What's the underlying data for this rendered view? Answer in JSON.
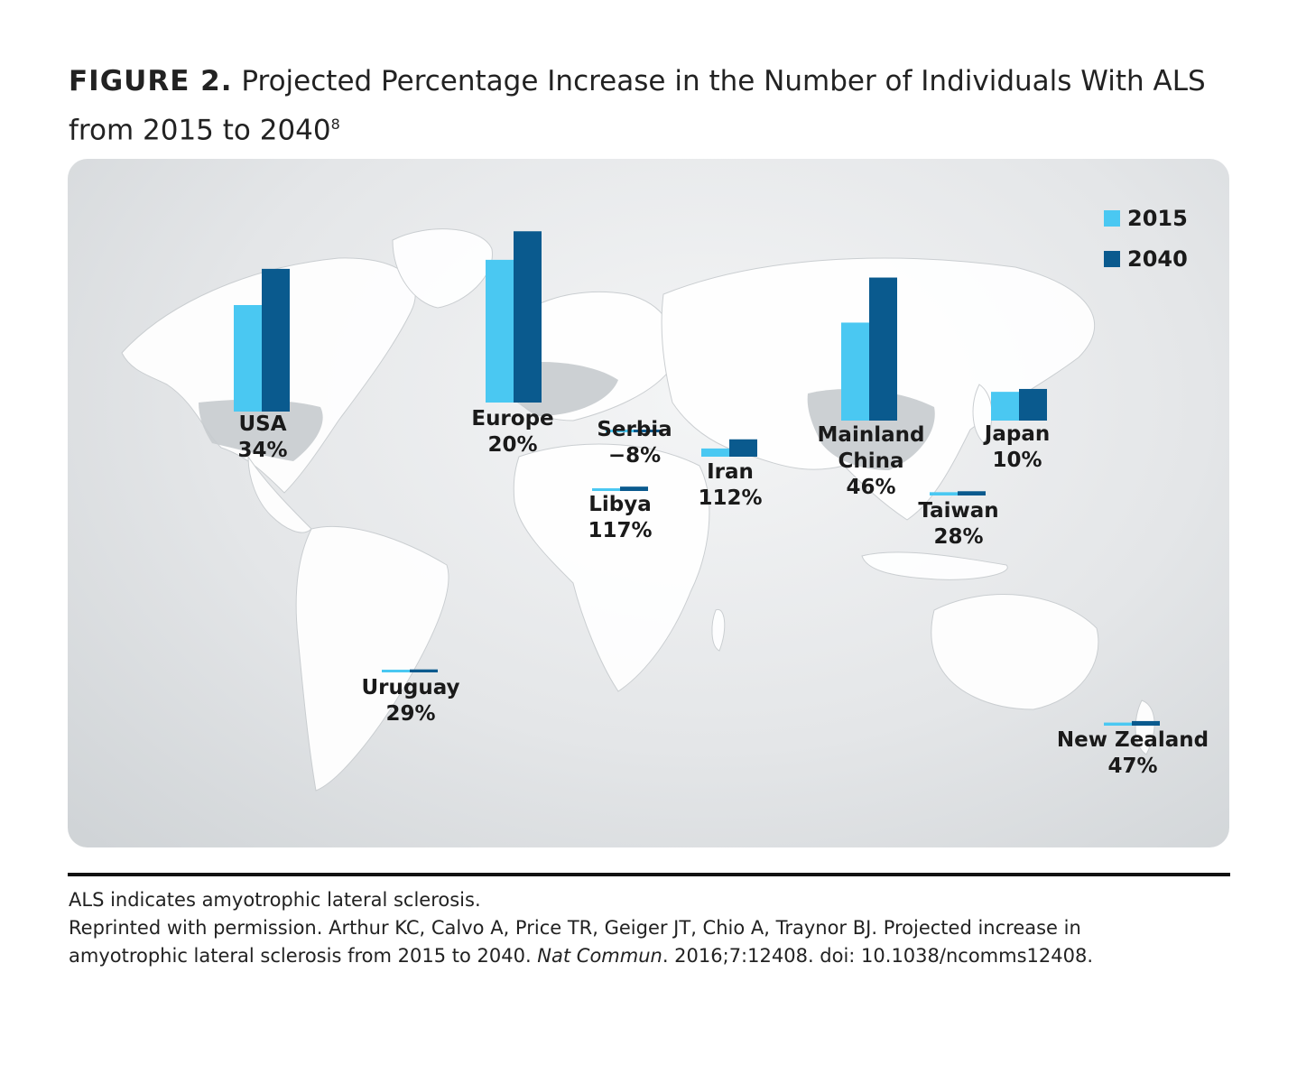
{
  "title": {
    "figure_label": "FIGURE 2.",
    "text": "Projected Percentage Increase in the Number of Individuals With ALS from 2015 to 2040",
    "superscript": "8"
  },
  "colors": {
    "c2015": "#4ac8f2",
    "c2040": "#0a5a8e"
  },
  "chart_data": {
    "type": "bar",
    "title": "Projected Percentage Increase in the Number of Individuals With ALS from 2015 to 2040",
    "series_names": [
      "2015",
      "2040"
    ],
    "legend": [
      "2015",
      "2040"
    ],
    "legend_position": "top-right",
    "regions": [
      {
        "name": "USA",
        "change": "34%",
        "v2015": 100,
        "v2040": 134
      },
      {
        "name": "Europe",
        "change": "20%",
        "v2015": 134,
        "v2040": 160.8
      },
      {
        "name": "Serbia",
        "change": "−8%",
        "v2015": 1.2,
        "v2040": 1.1
      },
      {
        "name": "Libya",
        "change": "117%",
        "v2015": 1.9,
        "v2040": 4.1
      },
      {
        "name": "Iran",
        "change": "112%",
        "v2015": 7.7,
        "v2040": 16.3
      },
      {
        "name": "Mainland China",
        "change": "46%",
        "v2015": 92,
        "v2040": 134.3
      },
      {
        "name": "Japan",
        "change": "10%",
        "v2015": 27,
        "v2040": 29.7
      },
      {
        "name": "Taiwan",
        "change": "28%",
        "v2015": 3.1,
        "v2040": 4
      },
      {
        "name": "Uruguay",
        "change": "29%",
        "v2015": 2.2,
        "v2040": 2.8
      },
      {
        "name": "New Zealand",
        "change": "47%",
        "v2015": 2.9,
        "v2040": 4.3
      }
    ]
  },
  "footnotes": {
    "abbrev": "ALS indicates amyotrophic lateral sclerosis.",
    "reprint_pre": "Reprinted with permission. Arthur KC, Calvo A, Price TR, Geiger JT, Chio A, Traynor BJ. Projected increase in amyotrophic lateral sclerosis from 2015 to 2040. ",
    "journal": "Nat Commun",
    "reprint_post": ". 2016;7:12408. doi: 10.1038/ncomms12408."
  }
}
